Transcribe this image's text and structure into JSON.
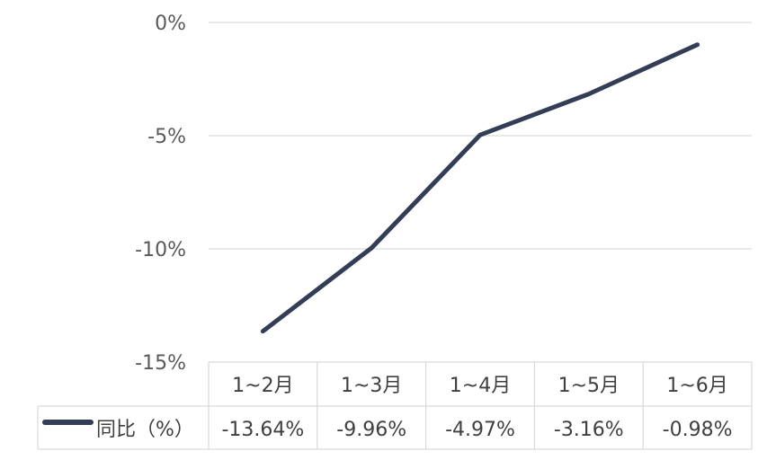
{
  "chart_data": {
    "type": "line",
    "categories": [
      "1~2月",
      "1~3月",
      "1~4月",
      "1~5月",
      "1~6月"
    ],
    "series": [
      {
        "name": "同比（%）",
        "values": [
          -13.64,
          -9.96,
          -4.97,
          -3.16,
          -0.98
        ]
      }
    ],
    "data_labels": [
      "-13.64%",
      "-9.96%",
      "-4.97%",
      "-3.16%",
      "-0.98%"
    ],
    "y_ticks": [
      0,
      -5,
      -10,
      -15
    ],
    "y_tick_labels": [
      "0%",
      "-5%",
      "-10%",
      "-15%"
    ],
    "ylim": [
      -15,
      0
    ],
    "grid": true,
    "legend": "data-table",
    "title": "",
    "xlabel": "",
    "ylabel": ""
  },
  "colors": {
    "series": "#333d56",
    "grid": "#d9d9d9",
    "table_border": "#d9d9d9",
    "text": "#404040",
    "tick_text": "#595959"
  }
}
